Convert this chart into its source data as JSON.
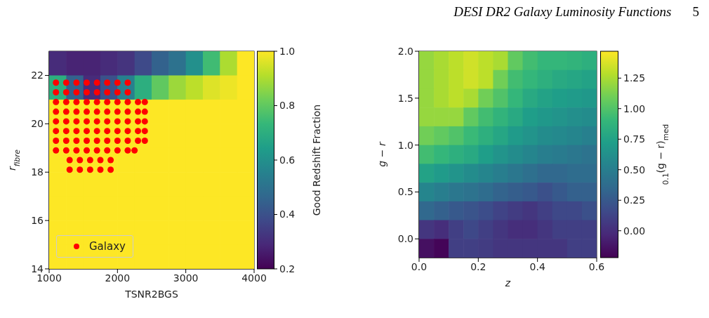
{
  "chart_data": [
    {
      "type": "heatmap",
      "xlabel": "TSNR2BGS",
      "ylabel": "r$_{fibre}$",
      "clabel": "Good Redshift Fraction",
      "annotations": [
        "DESI DR2 Galaxy Luminosity Functions",
        "5"
      ],
      "cells": [
        [
          0.3,
          0.28,
          0.28,
          0.3,
          0.32,
          0.38,
          0.45,
          0.5,
          0.6,
          0.75,
          0.9,
          1.0
        ],
        [
          0.7,
          0.45,
          0.3,
          0.4,
          0.55,
          0.7,
          0.8,
          0.88,
          0.92,
          0.96,
          0.98,
          1.0
        ],
        [
          1.0,
          1.0,
          1.0,
          1.0,
          1.0,
          1.0,
          1.0,
          1.0,
          1.0,
          1.0,
          1.0,
          1.0
        ],
        [
          1.0,
          1.0,
          1.0,
          1.0,
          1.0,
          1.0,
          1.0,
          1.0,
          1.0,
          1.0,
          1.0,
          1.0
        ],
        [
          1.0,
          1.0,
          1.0,
          1.0,
          1.0,
          1.0,
          1.0,
          1.0,
          1.0,
          1.0,
          1.0,
          1.0
        ],
        [
          1.0,
          1.0,
          1.0,
          1.0,
          1.0,
          1.0,
          1.0,
          1.0,
          1.0,
          1.0,
          1.0,
          1.0
        ],
        [
          1.0,
          1.0,
          1.0,
          1.0,
          1.0,
          1.0,
          1.0,
          1.0,
          1.0,
          1.0,
          1.0,
          1.0
        ],
        [
          1.0,
          1.0,
          1.0,
          1.0,
          1.0,
          1.0,
          1.0,
          1.0,
          1.0,
          1.0,
          1.0,
          1.0
        ],
        [
          1.0,
          1.0,
          1.0,
          1.0,
          1.0,
          1.0,
          1.0,
          1.0,
          1.0,
          1.0,
          1.0,
          1.0
        ]
      ],
      "xlim": [
        1000,
        4000
      ],
      "xticks": [
        1000,
        2000,
        3000,
        4000
      ],
      "ylim": [
        14,
        23
      ],
      "yticks": [
        14,
        16,
        18,
        20,
        22
      ],
      "clim": [
        0.2,
        1.0
      ],
      "cticks": [
        0.2,
        0.4,
        0.6,
        0.8,
        {
          "value": 1,
          "label": "1.0"
        }
      ],
      "legend": "bottom left",
      "series": [
        {
          "name": "Galaxy",
          "type": "scatter",
          "color": "#ff0000",
          "x": [
            1100,
            1250,
            1400,
            1550,
            1700,
            1850,
            2000,
            2150,
            1100,
            1250,
            1400,
            1550,
            1700,
            1850,
            2000,
            2150,
            1100,
            1250,
            1400,
            1550,
            1700,
            1850,
            2000,
            2150,
            2300,
            2400,
            1100,
            1250,
            1400,
            1550,
            1700,
            1850,
            2000,
            2150,
            2300,
            2400,
            1100,
            1250,
            1400,
            1550,
            1700,
            1850,
            2000,
            2150,
            2300,
            2400,
            1100,
            1250,
            1400,
            1550,
            1700,
            1850,
            2000,
            2150,
            2300,
            2400,
            1100,
            1250,
            1400,
            1550,
            1700,
            1850,
            2000,
            2150,
            2300,
            2400,
            1100,
            1250,
            1400,
            1550,
            1700,
            1850,
            2000,
            2150,
            2250,
            1300,
            1450,
            1600,
            1750,
            1900,
            1300,
            1450,
            1600,
            1750,
            1900
          ],
          "values": [
            21.7,
            21.7,
            21.7,
            21.7,
            21.7,
            21.7,
            21.7,
            21.7,
            21.3,
            21.3,
            21.3,
            21.3,
            21.3,
            21.3,
            21.3,
            21.3,
            20.9,
            20.9,
            20.9,
            20.9,
            20.9,
            20.9,
            20.9,
            20.9,
            20.9,
            20.9,
            20.5,
            20.5,
            20.5,
            20.5,
            20.5,
            20.5,
            20.5,
            20.5,
            20.5,
            20.5,
            20.1,
            20.1,
            20.1,
            20.1,
            20.1,
            20.1,
            20.1,
            20.1,
            20.1,
            20.1,
            19.7,
            19.7,
            19.7,
            19.7,
            19.7,
            19.7,
            19.7,
            19.7,
            19.7,
            19.7,
            19.3,
            19.3,
            19.3,
            19.3,
            19.3,
            19.3,
            19.3,
            19.3,
            19.3,
            19.3,
            18.9,
            18.9,
            18.9,
            18.9,
            18.9,
            18.9,
            18.9,
            18.9,
            18.9,
            18.5,
            18.5,
            18.5,
            18.5,
            18.5,
            18.1,
            18.1,
            18.1,
            18.1,
            18.1
          ]
        }
      ]
    },
    {
      "type": "heatmap",
      "xlabel": "z",
      "ylabel": "g − r",
      "clabel": "$_{0.1}$(g − r)$_{med}$",
      "cells": [
        [
          1.2,
          1.25,
          1.3,
          1.35,
          1.3,
          1.25,
          1.05,
          0.95,
          0.9,
          0.9,
          0.88,
          0.85
        ],
        [
          1.2,
          1.25,
          1.3,
          1.35,
          1.3,
          1.1,
          0.95,
          0.9,
          0.85,
          0.8,
          0.78,
          0.75
        ],
        [
          1.2,
          1.25,
          1.3,
          1.25,
          1.1,
          1.0,
          0.9,
          0.8,
          0.75,
          0.72,
          0.7,
          0.68
        ],
        [
          1.2,
          1.2,
          1.2,
          1.05,
          0.95,
          0.88,
          0.8,
          0.72,
          0.68,
          0.65,
          0.62,
          0.6
        ],
        [
          1.1,
          1.05,
          1.0,
          0.92,
          0.85,
          0.78,
          0.7,
          0.65,
          0.6,
          0.58,
          0.55,
          0.52
        ],
        [
          0.95,
          0.9,
          0.85,
          0.8,
          0.72,
          0.65,
          0.6,
          0.55,
          0.5,
          0.48,
          0.45,
          0.42
        ],
        [
          0.75,
          0.7,
          0.65,
          0.6,
          0.55,
          0.5,
          0.45,
          0.4,
          0.35,
          0.35,
          0.38,
          0.38
        ],
        [
          0.55,
          0.5,
          0.45,
          0.42,
          0.38,
          0.32,
          0.28,
          0.25,
          0.2,
          0.25,
          0.3,
          0.3
        ],
        [
          0.35,
          0.3,
          0.25,
          0.22,
          0.18,
          0.12,
          0.08,
          0.05,
          0.1,
          0.15,
          0.15,
          0.2
        ],
        [
          0.05,
          0.0,
          0.1,
          0.15,
          0.1,
          0.05,
          0.0,
          0.0,
          0.05,
          0.1,
          0.1,
          0.1
        ],
        [
          -0.15,
          -0.2,
          0.1,
          0.1,
          0.08,
          0.05,
          0.05,
          0.05,
          0.05,
          0.05,
          0.1,
          0.1
        ]
      ],
      "xlim": [
        0,
        0.6
      ],
      "xticks": [
        {
          "value": 0,
          "label": "0.0"
        },
        0.2,
        0.4,
        0.6
      ],
      "ylim": [
        -0.2,
        2.0
      ],
      "yticks": [
        {
          "value": 0,
          "label": "0.0"
        },
        0.5,
        {
          "value": 1,
          "label": "1.0"
        },
        1.5,
        {
          "value": 2,
          "label": "2.0"
        }
      ],
      "clim": [
        -0.22,
        1.47
      ],
      "cticks": [
        {
          "value": 0,
          "label": "0.00"
        },
        0.25,
        {
          "value": 0.5,
          "label": "0.50"
        },
        0.75,
        {
          "value": 1,
          "label": "1.00"
        },
        1.25
      ]
    }
  ]
}
